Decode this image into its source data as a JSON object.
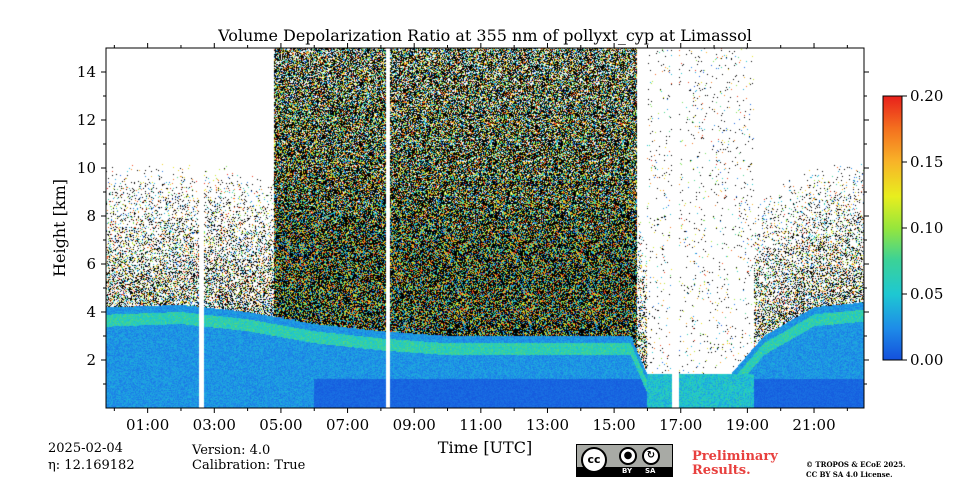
{
  "chart_data": {
    "type": "heatmap",
    "title": "Volume Depolarization Ratio at 355 nm of pollyxt_cyp at Limassol",
    "xlabel": "Time [UTC]",
    "ylabel": "Height [km]",
    "xlim_hours": [
      23.75,
      46.5
    ],
    "ylim": [
      0,
      15
    ],
    "x_tick_labels": [
      "01:00",
      "03:00",
      "05:00",
      "07:00",
      "09:00",
      "11:00",
      "13:00",
      "15:00",
      "17:00",
      "19:00",
      "21:00"
    ],
    "x_tick_hours": [
      25,
      27,
      29,
      31,
      33,
      35,
      37,
      39,
      41,
      43,
      45
    ],
    "y_ticks": [
      2,
      4,
      6,
      8,
      10,
      12,
      14
    ],
    "colorbar": {
      "ticks": [
        0.0,
        0.05,
        0.1,
        0.15,
        0.2
      ],
      "tick_labels": [
        "0.00",
        "0.05",
        "0.10",
        "0.15",
        "0.20"
      ],
      "range": [
        0,
        0.2
      ],
      "colormap": "jet",
      "min_color": "#1450dc",
      "max_color": "#ee2a1c"
    },
    "data_gaps_hours": [
      [
        26.55,
        26.68
      ],
      [
        32.15,
        32.28
      ],
      [
        40.75,
        40.95
      ]
    ],
    "aerosol_layer_top_km": [
      {
        "x": 24.0,
        "y": 4.2
      },
      {
        "x": 26.0,
        "y": 4.3
      },
      {
        "x": 28.0,
        "y": 4.0
      },
      {
        "x": 30.0,
        "y": 3.5
      },
      {
        "x": 32.0,
        "y": 3.2
      },
      {
        "x": 34.0,
        "y": 3.0
      },
      {
        "x": 36.0,
        "y": 3.0
      },
      {
        "x": 38.0,
        "y": 3.0
      },
      {
        "x": 39.5,
        "y": 3.0
      },
      {
        "x": 40.0,
        "y": 1.4
      },
      {
        "x": 42.5,
        "y": 1.4
      },
      {
        "x": 43.5,
        "y": 3.0
      },
      {
        "x": 45.0,
        "y": 4.2
      },
      {
        "x": 46.5,
        "y": 4.4
      }
    ],
    "grid": false
  },
  "footer": {
    "date": "2025-02-04",
    "eta_label": "η: 12.169182",
    "version": "Version: 4.0",
    "calibration": "Calibration: True",
    "preliminary_line1": "Preliminary",
    "preliminary_line2": "Results.",
    "copyright_line1": "© TROPOS & ECoE 2025.",
    "copyright_line2": "CC BY SA 4.0 License.",
    "license_badge": {
      "icon": "cc-by-sa-icon",
      "cc": "cc",
      "by": "BY",
      "sa": "SA"
    }
  }
}
